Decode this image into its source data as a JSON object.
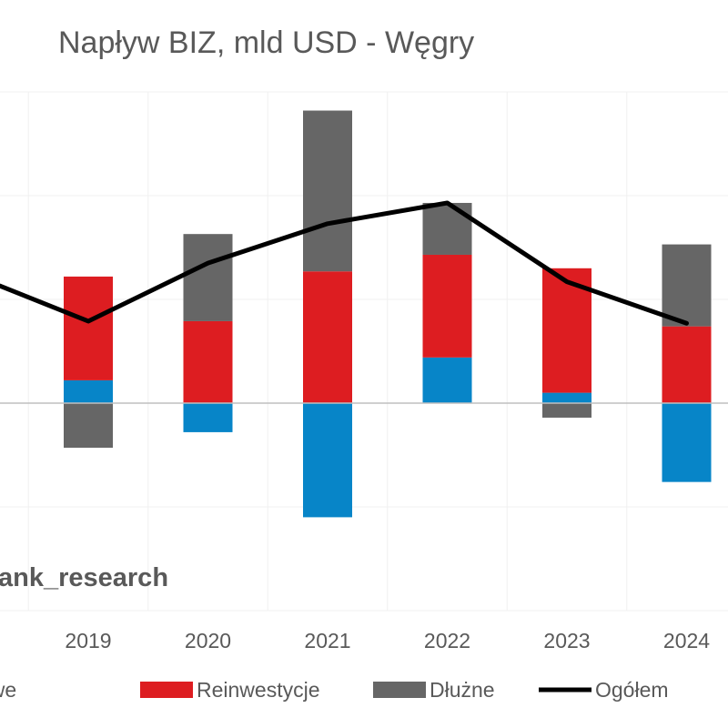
{
  "chart_data": {
    "type": "bar",
    "stacked": true,
    "title": "Napływ BIZ, mld USD - Węgry",
    "categories": [
      "2019",
      "2020",
      "2021",
      "2022",
      "2023",
      "2024"
    ],
    "ylim": [
      -2,
      3
    ],
    "grid": true,
    "legend_position": "bottom",
    "series": [
      {
        "name": "Udziałowe",
        "kind": "bar",
        "color": "#0785C8",
        "values": [
          0.22,
          -0.28,
          -1.1,
          0.44,
          0.1,
          -0.76
        ]
      },
      {
        "name": "Reinwestycje",
        "kind": "bar",
        "color": "#DD1D21",
        "values": [
          1.0,
          0.79,
          1.27,
          0.99,
          1.2,
          0.74
        ]
      },
      {
        "name": "Dłużne",
        "kind": "bar",
        "color": "#666666",
        "values": [
          -0.43,
          0.84,
          1.55,
          0.5,
          -0.14,
          0.79
        ]
      },
      {
        "name": "Ogółem",
        "kind": "line",
        "color": "#000000",
        "values": [
          0.79,
          1.35,
          1.73,
          1.93,
          1.17,
          0.77
        ],
        "left_edge_value": 1.13
      }
    ]
  },
  "watermark": "ank_research"
}
